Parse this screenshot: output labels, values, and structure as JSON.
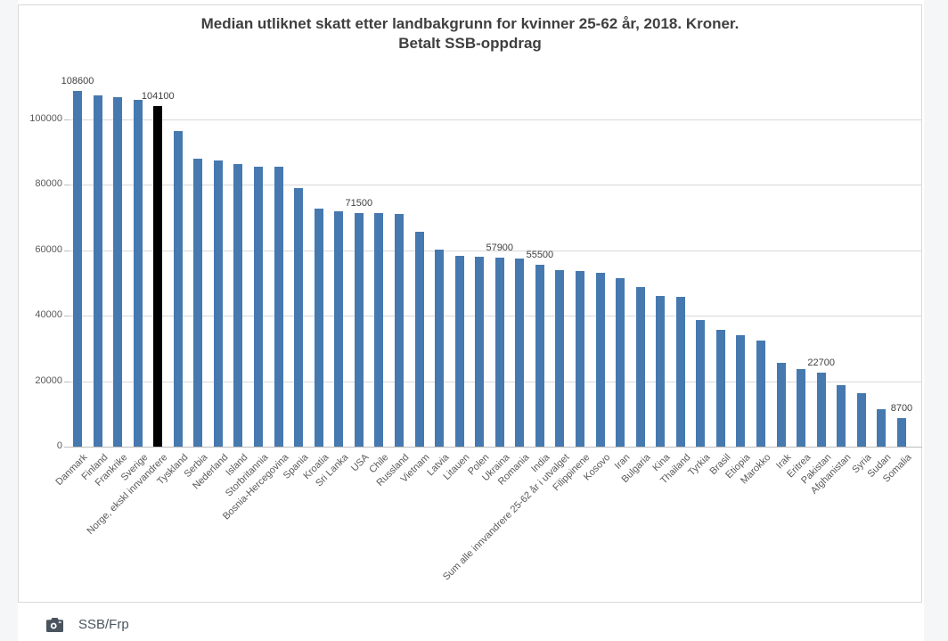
{
  "page": {
    "source_label": "SSB/Frp"
  },
  "chart_data": {
    "type": "bar",
    "title": "Median utliknet skatt etter landbakgrunn for kvinner 25-62 år, 2018. Kroner. Betalt SSB-oppdrag",
    "title_line1": "Median utliknet skatt etter landbakgrunn for kvinner 25-62 år, 2018. Kroner.",
    "title_line2": "Betalt SSB-oppdrag",
    "xlabel": "",
    "ylabel": "",
    "ylim": [
      0,
      110000
    ],
    "yticks": [
      0,
      20000,
      40000,
      60000,
      80000,
      100000
    ],
    "ytick_labels": [
      "0",
      "20000",
      "40000",
      "60000",
      "80000",
      "100000"
    ],
    "grid": true,
    "legend": false,
    "bar_color": "#4679af",
    "highlight_color": "#000000",
    "highlight_index": 4,
    "categories": [
      "Danmark",
      "Finland",
      "Frankrike",
      "Sverige",
      "Norge, ekskl innvandrere",
      "Tyskland",
      "Serbia",
      "Nederland",
      "Island",
      "Storbritannia",
      "Bosnia-Hercegovina",
      "Spania",
      "Kroatia",
      "Sri Lanka",
      "USA",
      "Chile",
      "Russland",
      "Vietnam",
      "Latvia",
      "Litauen",
      "Polen",
      "Ukraina",
      "Romania",
      "India",
      "Sum alle innvandrere 25-62 år i utvalget",
      "Filippinene",
      "Kosovo",
      "Iran",
      "Bulgaria",
      "Kina",
      "Thailand",
      "Tyrkia",
      "Brasil",
      "Etiopia",
      "Marokko",
      "Irak",
      "Eritrea",
      "Pakistan",
      "Afghanistan",
      "Syria",
      "Sudan",
      "Somalia"
    ],
    "values": [
      108600,
      107400,
      106700,
      105900,
      104100,
      96400,
      87900,
      87600,
      86300,
      85600,
      85500,
      79100,
      72700,
      72000,
      71500,
      71300,
      71100,
      65700,
      60200,
      58400,
      58100,
      57900,
      57600,
      55500,
      53900,
      53700,
      53000,
      51400,
      48700,
      46000,
      45800,
      38800,
      35600,
      34100,
      32300,
      25700,
      23700,
      22700,
      18800,
      16300,
      11400,
      8700
    ],
    "data_labels": [
      {
        "index": 0,
        "text": "108600"
      },
      {
        "index": 4,
        "text": "104100"
      },
      {
        "index": 14,
        "text": "71500"
      },
      {
        "index": 21,
        "text": "57900"
      },
      {
        "index": 23,
        "text": "55500"
      },
      {
        "index": 37,
        "text": "22700"
      },
      {
        "index": 41,
        "text": "8700"
      }
    ]
  }
}
